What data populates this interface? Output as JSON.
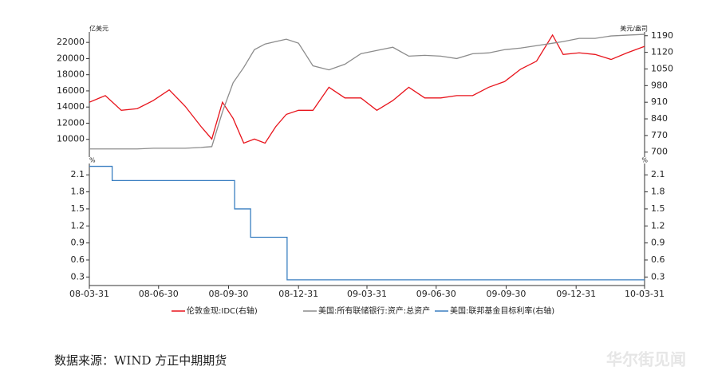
{
  "chart_data": [
    {
      "type": "line",
      "y_label": "亿美元",
      "y2_label": "美元/盎司",
      "x": [
        "08-03-31",
        "08-04-21",
        "08-05-12",
        "08-06-02",
        "08-06-23",
        "08-07-14",
        "08-08-04",
        "08-08-25",
        "08-09-08",
        "08-09-22",
        "08-10-06",
        "08-10-20",
        "08-11-03",
        "08-11-17",
        "08-12-01",
        "08-12-15",
        "08-12-31",
        "09-01-19",
        "09-02-09",
        "09-03-02",
        "09-03-23",
        "09-04-13",
        "09-05-04",
        "09-05-25",
        "09-06-15",
        "09-07-06",
        "09-07-27",
        "09-08-17",
        "09-09-07",
        "09-09-28",
        "09-10-19",
        "09-11-09",
        "09-11-30",
        "09-12-14",
        "10-01-04",
        "10-01-25",
        "10-02-15",
        "10-03-08",
        "10-03-31"
      ],
      "xlim": [
        "08-03-31",
        "10-03-31"
      ],
      "ylim": [
        7800,
        23300
      ],
      "yticks": [
        10000,
        12000,
        14000,
        16000,
        18000,
        20000,
        22000
      ],
      "y2lim": [
        679,
        1206
      ],
      "y2ticks": [
        700,
        770,
        840,
        910,
        980,
        1050,
        1120,
        1190
      ],
      "series": [
        {
          "name": "伦敦金现:IDC(右轴)",
          "color": "#e8141c",
          "axis": "y2",
          "values": [
            910,
            938,
            876,
            883,
            917,
            962,
            893,
            807,
            755,
            910,
            842,
            738,
            755,
            738,
            807,
            859,
            876,
            876,
            973,
            928,
            928,
            876,
            917,
            973,
            928,
            928,
            938,
            938,
            973,
            997,
            1049,
            1083,
            1193,
            1111,
            1118,
            1111,
            1090,
            1118,
            1145
          ]
        },
        {
          "name": "美国:所有联储银行:资产:总资产",
          "color": "#8c8c8c",
          "axis": "y",
          "values": [
            8815,
            8815,
            8815,
            8815,
            8900,
            8900,
            8900,
            9000,
            9100,
            13400,
            17000,
            18900,
            21100,
            21800,
            22100,
            22400,
            21900,
            19100,
            18600,
            19300,
            20600,
            21000,
            21400,
            20300,
            20400,
            20300,
            20000,
            20600,
            20700,
            21100,
            21300,
            21600,
            21900,
            22100,
            22500,
            22500,
            22800,
            22900,
            23000
          ]
        }
      ]
    },
    {
      "type": "line",
      "step": true,
      "y_label": "%",
      "y2_label": "%",
      "mirror_ticks": true,
      "x": [
        "08-03-31",
        "08-04-30",
        "08-10-08",
        "08-10-29",
        "08-12-16",
        "10-03-31"
      ],
      "xlim": [
        "08-03-31",
        "10-03-31"
      ],
      "xticks": [
        "08-03-31",
        "08-06-30",
        "08-09-30",
        "08-12-31",
        "09-03-31",
        "09-06-30",
        "09-09-30",
        "09-12-31",
        "10-03-31"
      ],
      "ylim": [
        0.15,
        2.3
      ],
      "yticks": [
        0.3,
        0.6,
        0.9,
        1.2,
        1.5,
        1.8,
        2.1
      ],
      "series": [
        {
          "name": "美国:联邦基金目标利率(右轴)",
          "color": "#3a7fc1",
          "axis": "y",
          "values": [
            2.25,
            2.0,
            1.5,
            1.0,
            0.25,
            0.25
          ]
        }
      ]
    }
  ],
  "source": "数据来源：WIND  方正中期期货",
  "watermark": "华尔街见闻"
}
